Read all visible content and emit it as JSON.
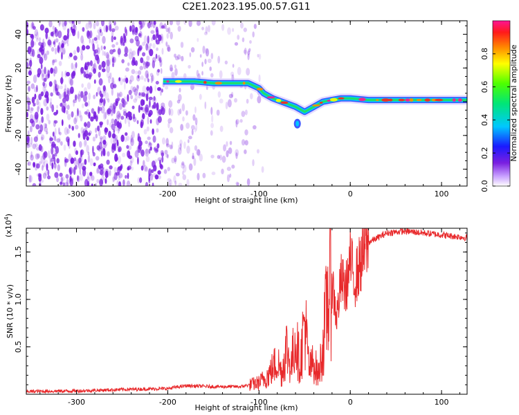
{
  "title": "C2E1.2023.195.00.57.G11",
  "colors": {
    "snr_line": "#e8292b",
    "spectrogram_scatter": "#7a1fe0"
  },
  "chart_data": [
    {
      "type": "heatmap",
      "xlabel": "Height of straight line (km)",
      "ylabel": "Frequency (Hz)",
      "xlim": [
        -355,
        128
      ],
      "ylim": [
        -50,
        48
      ],
      "x_ticks": [
        -300,
        -200,
        -100,
        0,
        100
      ],
      "x_tick_labels": [
        "-300",
        "-200",
        "-100",
        "0",
        "100"
      ],
      "y_ticks": [
        -40,
        -20,
        0,
        20,
        40
      ],
      "y_tick_labels": [
        "-40",
        "-20",
        "0",
        "20",
        "40"
      ],
      "colorbar": {
        "label": "Normalized spectral amplitude",
        "range": [
          0,
          1
        ],
        "ticks": [
          0.0,
          0.2,
          0.4,
          0.6,
          0.8
        ],
        "tick_labels": [
          "0.0",
          "0.2",
          "0.4",
          "0.6",
          "0.8"
        ],
        "colormap": "rainbow"
      },
      "ridge": [
        [
          -205,
          12
        ],
        [
          -190,
          12
        ],
        [
          -170,
          12
        ],
        [
          -150,
          11
        ],
        [
          -130,
          11
        ],
        [
          -112,
          11
        ],
        [
          -100,
          8
        ],
        [
          -95,
          5
        ],
        [
          -85,
          2
        ],
        [
          -70,
          -1
        ],
        [
          -60,
          -3
        ],
        [
          -50,
          -6
        ],
        [
          -40,
          -3
        ],
        [
          -30,
          0
        ],
        [
          -20,
          1
        ],
        [
          -10,
          2
        ],
        [
          0,
          2
        ],
        [
          20,
          1
        ],
        [
          40,
          1
        ],
        [
          60,
          1
        ],
        [
          80,
          1
        ],
        [
          100,
          1
        ],
        [
          128,
          1
        ]
      ],
      "outlier": [
        -58,
        -13
      ]
    },
    {
      "type": "line",
      "xlabel": "Height of straight line (km)",
      "ylabel": "SNR (10 * v/v)",
      "y_multiplier": "(x10⁴)",
      "xlim": [
        -355,
        128
      ],
      "ylim": [
        0,
        17500
      ],
      "x_ticks": [
        -300,
        -200,
        -100,
        0,
        100
      ],
      "x_tick_labels": [
        "-300",
        "-200",
        "-100",
        "0",
        "100"
      ],
      "y_ticks": [
        5000,
        10000,
        15000
      ],
      "y_tick_labels": [
        "0.5",
        "1.0",
        "1.5"
      ],
      "series": [
        {
          "x": [
            -355,
            -300,
            -250,
            -200,
            -180,
            -150,
            -120,
            -100,
            -90,
            -80,
            -75,
            -70,
            -65,
            -60,
            -55,
            -50,
            -45,
            -40,
            -35,
            -30,
            -25,
            -20,
            -15,
            -10,
            -5,
            0,
            5,
            10,
            15,
            20,
            30,
            40,
            60,
            80,
            100,
            128
          ],
          "y": [
            300,
            350,
            500,
            600,
            900,
            800,
            800,
            1200,
            2000,
            3500,
            2200,
            5000,
            2800,
            6000,
            3000,
            8000,
            2500,
            3500,
            2000,
            5000,
            10000,
            12000,
            8000,
            12000,
            11000,
            14000,
            12000,
            13500,
            15000,
            16000,
            16500,
            17000,
            17200,
            17000,
            16800,
            16500
          ]
        }
      ]
    }
  ]
}
